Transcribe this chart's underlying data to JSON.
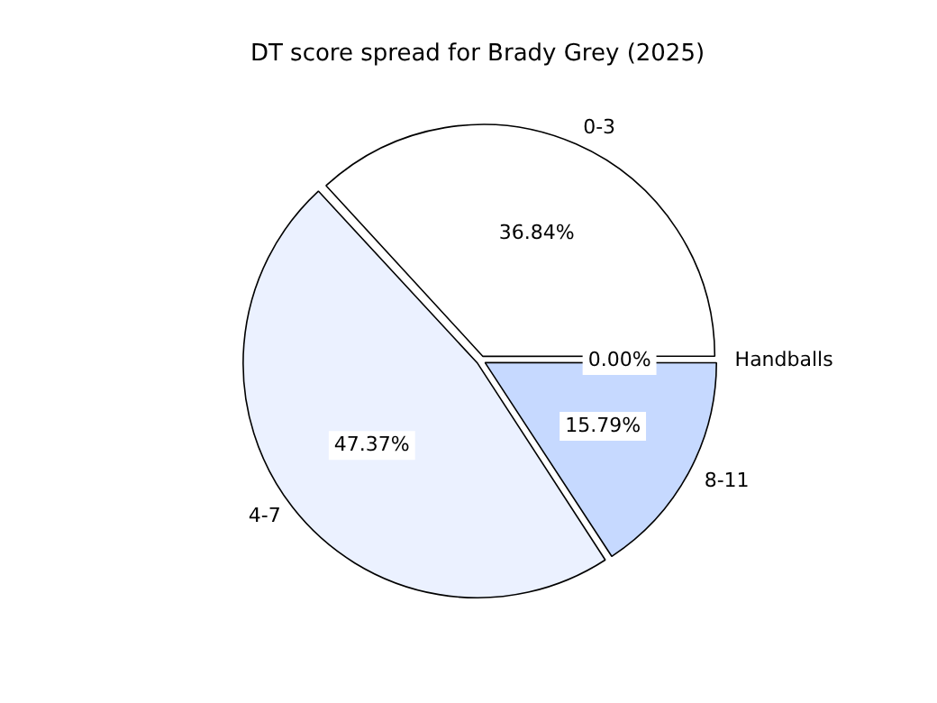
{
  "chart_data": {
    "type": "pie",
    "title": "DT score spread for Brady Grey (2025)",
    "categories": [
      "0-3",
      "4-7",
      "8-11",
      "Handballs"
    ],
    "values": [
      36.84,
      47.37,
      15.79,
      0
    ],
    "colors": [
      "#ffffff",
      "#ebf1ff",
      "#c6d9ff",
      "#a3c2ff"
    ],
    "value_labels": [
      "36.84%",
      "47.37%",
      "15.79%",
      "0.00%"
    ],
    "legend": false
  }
}
